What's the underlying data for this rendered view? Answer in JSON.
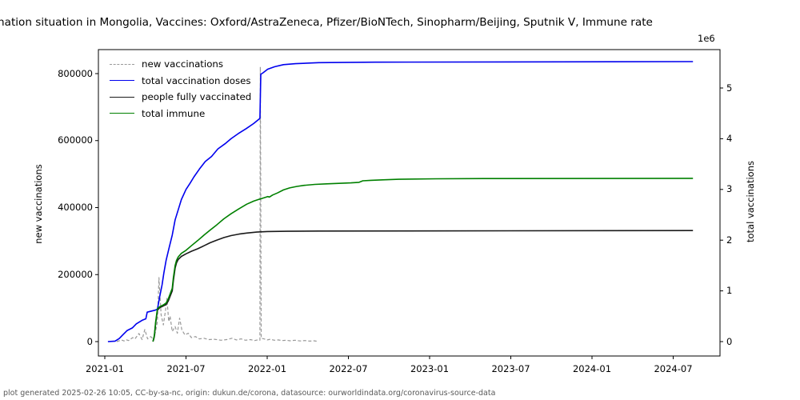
{
  "title": "nation situation in Mongolia, Vaccines: Oxford/AstraZeneca, Pfizer/BioNTech, Sinopharm/Beijing, Sputnik V, Immune rate",
  "footer": "plot generated 2025-02-26 10:05, CC-by-sa-nc, origin: dukun.de/corona, datasource: ourworldindata.org/coronavirus-source-data",
  "axes": {
    "left": {
      "label": "new vaccinations",
      "ticks": [
        {
          "value": 0,
          "label": "0"
        },
        {
          "value": 200000,
          "label": "200000"
        },
        {
          "value": 400000,
          "label": "400000"
        },
        {
          "value": 600000,
          "label": "600000"
        },
        {
          "value": 800000,
          "label": "800000"
        }
      ]
    },
    "right": {
      "label": "total vaccinations",
      "offset_text": "1e6",
      "ticks": [
        {
          "value": 0,
          "label": "0"
        },
        {
          "value": 1,
          "label": "1"
        },
        {
          "value": 2,
          "label": "2"
        },
        {
          "value": 3,
          "label": "3"
        },
        {
          "value": 4,
          "label": "4"
        },
        {
          "value": 5,
          "label": "5"
        }
      ]
    },
    "x": {
      "ticks": [
        {
          "value": "2021-01",
          "label": "2021-01"
        },
        {
          "value": "2021-07",
          "label": "2021-07"
        },
        {
          "value": "2022-01",
          "label": "2022-01"
        },
        {
          "value": "2022-07",
          "label": "2022-07"
        },
        {
          "value": "2023-01",
          "label": "2023-01"
        },
        {
          "value": "2023-07",
          "label": "2023-07"
        },
        {
          "value": "2024-01",
          "label": "2024-01"
        },
        {
          "value": "2024-07",
          "label": "2024-07"
        }
      ]
    }
  },
  "legend": [
    {
      "id": "new-vaccinations",
      "label": "new vaccinations",
      "color": "#999999",
      "dashed": true
    },
    {
      "id": "total-vaccination-doses",
      "label": "total vaccination doses",
      "color": "#0000ee",
      "dashed": false
    },
    {
      "id": "people-fully-vaccinated",
      "label": "people fully vaccinated",
      "color": "#1a1a1a",
      "dashed": false
    },
    {
      "id": "total-immune",
      "label": "total immune",
      "color": "#008000",
      "dashed": false
    }
  ],
  "chart_data": {
    "type": "line",
    "title": "nation situation in Mongolia, Vaccines: Oxford/AstraZeneca, Pfizer/BioNTech, Sinopharm/Beijing, Sputnik V, Immune rate",
    "xlabel": "",
    "x_range": [
      "2021-01",
      "2024-10"
    ],
    "y_left": {
      "label": "new vaccinations",
      "lim": [
        -43000,
        870000
      ],
      "grid": false
    },
    "y_right": {
      "label": "total vaccinations",
      "unit": "1e6",
      "lim": [
        -0.28,
        5.76
      ],
      "grid": false
    },
    "legend_position": "upper left",
    "series": [
      {
        "id": "new-vaccinations",
        "name": "new vaccinations",
        "axis": "left",
        "color": "#999999",
        "style": "dashed",
        "width": 1.2,
        "points": [
          [
            "2021-01-28",
            0
          ],
          [
            "2021-02-08",
            5000
          ],
          [
            "2021-02-14",
            2000
          ],
          [
            "2021-02-18",
            6000
          ],
          [
            "2021-02-24",
            3000
          ],
          [
            "2021-03-03",
            12000
          ],
          [
            "2021-03-08",
            8000
          ],
          [
            "2021-03-17",
            24000
          ],
          [
            "2021-03-24",
            6000
          ],
          [
            "2021-03-30",
            36000
          ],
          [
            "2021-04-06",
            8000
          ],
          [
            "2021-04-13",
            15000
          ],
          [
            "2021-04-20",
            5000
          ],
          [
            "2021-04-28",
            60000
          ],
          [
            "2021-05-01",
            191000
          ],
          [
            "2021-05-06",
            80000
          ],
          [
            "2021-05-11",
            50000
          ],
          [
            "2021-05-16",
            95000
          ],
          [
            "2021-05-19",
            129000
          ],
          [
            "2021-05-23",
            60000
          ],
          [
            "2021-05-26",
            76000
          ],
          [
            "2021-05-31",
            30000
          ],
          [
            "2021-06-07",
            45000
          ],
          [
            "2021-06-12",
            25000
          ],
          [
            "2021-06-17",
            70000
          ],
          [
            "2021-06-22",
            35000
          ],
          [
            "2021-06-29",
            20000
          ],
          [
            "2021-07-06",
            25000
          ],
          [
            "2021-07-13",
            12000
          ],
          [
            "2021-07-22",
            15000
          ],
          [
            "2021-07-31",
            8000
          ],
          [
            "2021-08-11",
            10000
          ],
          [
            "2021-08-21",
            6000
          ],
          [
            "2021-09-04",
            7000
          ],
          [
            "2021-09-19",
            4000
          ],
          [
            "2021-10-01",
            6000
          ],
          [
            "2021-10-13",
            10000
          ],
          [
            "2021-10-23",
            5000
          ],
          [
            "2021-11-03",
            8000
          ],
          [
            "2021-11-13",
            4000
          ],
          [
            "2021-11-24",
            6000
          ],
          [
            "2021-12-03",
            3000
          ],
          [
            "2021-12-10",
            5000
          ],
          [
            "2021-12-15",
            4000
          ],
          [
            "2021-12-16",
            820000
          ],
          [
            "2021-12-18",
            10000
          ],
          [
            "2021-12-24",
            8000
          ],
          [
            "2022-01-01",
            5000
          ],
          [
            "2022-01-08",
            7000
          ],
          [
            "2022-01-17",
            4000
          ],
          [
            "2022-01-26",
            5000
          ],
          [
            "2022-02-04",
            3000
          ],
          [
            "2022-02-13",
            4000
          ],
          [
            "2022-02-22",
            2500
          ],
          [
            "2022-03-03",
            4000
          ],
          [
            "2022-03-14",
            2000
          ],
          [
            "2022-03-25",
            3000
          ],
          [
            "2022-04-05",
            1500
          ],
          [
            "2022-04-15",
            2500
          ],
          [
            "2022-04-22",
            1000
          ]
        ]
      },
      {
        "id": "total-vaccination-doses",
        "name": "total vaccination doses",
        "axis": "right",
        "color": "#0000ee",
        "style": "solid",
        "width": 1.6,
        "points": [
          [
            "2021-01-08",
            0
          ],
          [
            "2021-01-24",
            0.01
          ],
          [
            "2021-02-03",
            0.06
          ],
          [
            "2021-02-12",
            0.14
          ],
          [
            "2021-02-21",
            0.22
          ],
          [
            "2021-03-02",
            0.27
          ],
          [
            "2021-03-11",
            0.35
          ],
          [
            "2021-03-24",
            0.42
          ],
          [
            "2021-04-02",
            0.45
          ],
          [
            "2021-04-05",
            0.58
          ],
          [
            "2021-04-23",
            0.62
          ],
          [
            "2021-04-28",
            0.64
          ],
          [
            "2021-05-03",
            0.9
          ],
          [
            "2021-05-08",
            1.12
          ],
          [
            "2021-05-12",
            1.35
          ],
          [
            "2021-05-17",
            1.6
          ],
          [
            "2021-05-24",
            1.85
          ],
          [
            "2021-05-31",
            2.1
          ],
          [
            "2021-06-07",
            2.4
          ],
          [
            "2021-06-14",
            2.6
          ],
          [
            "2021-06-21",
            2.8
          ],
          [
            "2021-07-01",
            3.0
          ],
          [
            "2021-07-10",
            3.12
          ],
          [
            "2021-07-19",
            3.25
          ],
          [
            "2021-07-31",
            3.4
          ],
          [
            "2021-08-14",
            3.55
          ],
          [
            "2021-08-28",
            3.65
          ],
          [
            "2021-09-12",
            3.8
          ],
          [
            "2021-09-28",
            3.9
          ],
          [
            "2021-10-11",
            4.0
          ],
          [
            "2021-10-27",
            4.1
          ],
          [
            "2021-11-15",
            4.2
          ],
          [
            "2021-12-01",
            4.3
          ],
          [
            "2021-12-15",
            4.4
          ],
          [
            "2021-12-17",
            5.27
          ],
          [
            "2021-12-22",
            5.3
          ],
          [
            "2022-01-02",
            5.37
          ],
          [
            "2022-01-18",
            5.42
          ],
          [
            "2022-02-07",
            5.46
          ],
          [
            "2022-03-04",
            5.48
          ],
          [
            "2022-04-26",
            5.5
          ],
          [
            "2022-09-01",
            5.51
          ],
          [
            "2024-08-15",
            5.52
          ]
        ]
      },
      {
        "id": "people-fully-vaccinated",
        "name": "people fully vaccinated",
        "axis": "right",
        "color": "#1a1a1a",
        "style": "solid",
        "width": 1.6,
        "points": [
          [
            "2021-04-18",
            0
          ],
          [
            "2021-04-21",
            0.1
          ],
          [
            "2021-04-24",
            0.35
          ],
          [
            "2021-04-28",
            0.62
          ],
          [
            "2021-05-03",
            0.67
          ],
          [
            "2021-05-10",
            0.7
          ],
          [
            "2021-05-17",
            0.73
          ],
          [
            "2021-05-22",
            0.8
          ],
          [
            "2021-05-31",
            1.0
          ],
          [
            "2021-06-03",
            1.2
          ],
          [
            "2021-06-07",
            1.45
          ],
          [
            "2021-06-10",
            1.55
          ],
          [
            "2021-06-14",
            1.62
          ],
          [
            "2021-06-21",
            1.68
          ],
          [
            "2021-07-01",
            1.73
          ],
          [
            "2021-07-13",
            1.78
          ],
          [
            "2021-07-27",
            1.83
          ],
          [
            "2021-08-11",
            1.89
          ],
          [
            "2021-08-25",
            1.95
          ],
          [
            "2021-09-09",
            2.0
          ],
          [
            "2021-09-25",
            2.05
          ],
          [
            "2021-10-11",
            2.09
          ],
          [
            "2021-10-29",
            2.12
          ],
          [
            "2021-11-16",
            2.14
          ],
          [
            "2021-12-08",
            2.16
          ],
          [
            "2022-01-01",
            2.17
          ],
          [
            "2022-02-15",
            2.175
          ],
          [
            "2022-04-26",
            2.18
          ],
          [
            "2024-08-15",
            2.19
          ]
        ]
      },
      {
        "id": "total-immune",
        "name": "total immune",
        "axis": "right",
        "color": "#008000",
        "style": "solid",
        "width": 1.6,
        "points": [
          [
            "2021-04-18",
            0
          ],
          [
            "2021-04-21",
            0.12
          ],
          [
            "2021-04-24",
            0.38
          ],
          [
            "2021-04-28",
            0.65
          ],
          [
            "2021-05-03",
            0.69
          ],
          [
            "2021-05-10",
            0.72
          ],
          [
            "2021-05-17",
            0.76
          ],
          [
            "2021-05-22",
            0.84
          ],
          [
            "2021-05-31",
            1.05
          ],
          [
            "2021-06-03",
            1.26
          ],
          [
            "2021-06-07",
            1.5
          ],
          [
            "2021-06-10",
            1.6
          ],
          [
            "2021-06-14",
            1.67
          ],
          [
            "2021-06-21",
            1.74
          ],
          [
            "2021-07-01",
            1.8
          ],
          [
            "2021-07-13",
            1.89
          ],
          [
            "2021-07-27",
            1.99
          ],
          [
            "2021-08-11",
            2.1
          ],
          [
            "2021-08-25",
            2.2
          ],
          [
            "2021-09-09",
            2.3
          ],
          [
            "2021-09-25",
            2.42
          ],
          [
            "2021-10-11",
            2.52
          ],
          [
            "2021-10-29",
            2.62
          ],
          [
            "2021-11-16",
            2.71
          ],
          [
            "2021-12-01",
            2.77
          ],
          [
            "2021-12-15",
            2.81
          ],
          [
            "2021-12-22",
            2.83
          ],
          [
            "2022-01-02",
            2.86
          ],
          [
            "2022-01-06",
            2.85
          ],
          [
            "2022-01-13",
            2.89
          ],
          [
            "2022-01-24",
            2.93
          ],
          [
            "2022-02-07",
            2.99
          ],
          [
            "2022-02-21",
            3.03
          ],
          [
            "2022-03-07",
            3.06
          ],
          [
            "2022-03-23",
            3.08
          ],
          [
            "2022-04-17",
            3.1
          ],
          [
            "2022-05-13",
            3.11
          ],
          [
            "2022-06-10",
            3.12
          ],
          [
            "2022-07-07",
            3.13
          ],
          [
            "2022-07-25",
            3.14
          ],
          [
            "2022-08-03",
            3.17
          ],
          [
            "2022-08-21",
            3.18
          ],
          [
            "2022-09-17",
            3.19
          ],
          [
            "2022-10-23",
            3.2
          ],
          [
            "2023-01-15",
            3.21
          ],
          [
            "2023-05-01",
            3.215
          ],
          [
            "2024-08-15",
            3.22
          ]
        ]
      }
    ]
  }
}
